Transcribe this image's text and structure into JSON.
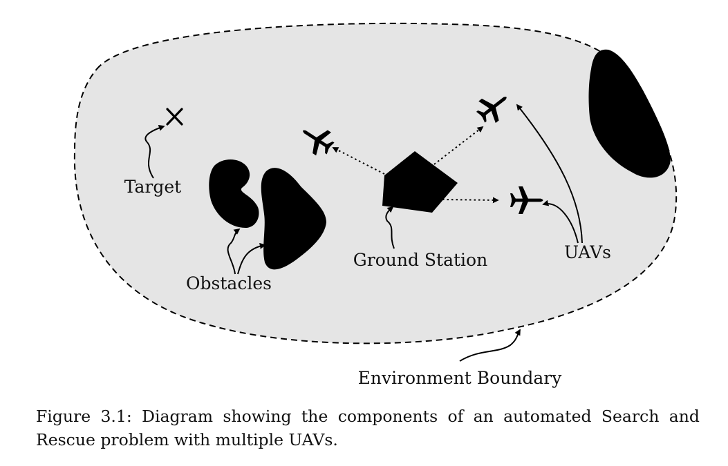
{
  "labels": {
    "target": "Target",
    "obstacles": "Obstacles",
    "ground_station": "Ground Station",
    "uavs": "UAVs",
    "environment_boundary": "Environment Boundary"
  },
  "caption": {
    "prefix": "Figure 3.1:",
    "text": "Diagram showing the components of an automated Search and Rescue problem with multiple UAVs."
  },
  "icons": {
    "uav": "airplane-icon",
    "target": "cross-icon",
    "ground_station": "pentagon-icon",
    "obstacle": "blob-icon"
  },
  "colors": {
    "environment_fill": "#e5e5e5",
    "ink": "#000000"
  }
}
